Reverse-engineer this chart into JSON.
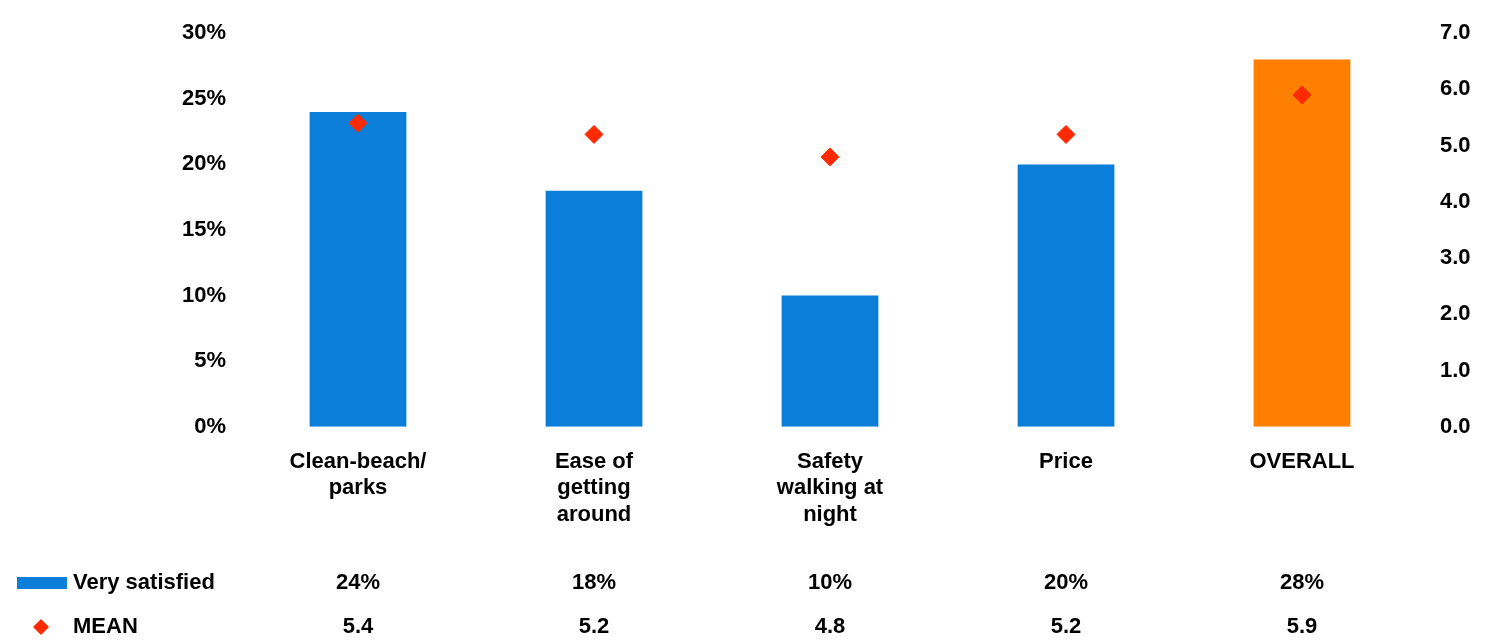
{
  "chart_data": {
    "type": "bar",
    "categories": [
      "Clean-beach/\nparks",
      "Ease of\ngetting\naround",
      "Safety\nwalking at\nnight",
      "Price",
      "OVERALL"
    ],
    "series": [
      {
        "name": "Very satisfied",
        "colors": [
          "#0a7ed8",
          "#0a7ed8",
          "#0a7ed8",
          "#0a7ed8",
          "#ff7f00"
        ],
        "values": [
          24,
          18,
          10,
          20,
          28
        ],
        "value_labels": [
          "24%",
          "18%",
          "10%",
          "20%",
          "28%"
        ]
      },
      {
        "name": "MEAN",
        "type": "scatter",
        "axis": "y2",
        "color": "#ff2a00",
        "marker": "diamond",
        "values": [
          5.4,
          5.2,
          4.8,
          5.2,
          5.9
        ],
        "value_labels": [
          "5.4",
          "5.2",
          "4.8",
          "5.2",
          "5.9"
        ]
      }
    ],
    "ylim": [
      0,
      30
    ],
    "yticks": [
      {
        "value": 0,
        "label": "0%"
      },
      {
        "value": 5,
        "label": "5%"
      },
      {
        "value": 10,
        "label": "10%"
      },
      {
        "value": 15,
        "label": "15%"
      },
      {
        "value": 20,
        "label": "20%"
      },
      {
        "value": 25,
        "label": "25%"
      },
      {
        "value": 30,
        "label": "30%"
      }
    ],
    "y2lim": [
      0,
      7
    ],
    "y2ticks": [
      {
        "value": 0,
        "label": "0.0"
      },
      {
        "value": 1,
        "label": "1.0"
      },
      {
        "value": 2,
        "label": "2.0"
      },
      {
        "value": 3,
        "label": "3.0"
      },
      {
        "value": 4,
        "label": "4.0"
      },
      {
        "value": 5,
        "label": "5.0"
      },
      {
        "value": 6,
        "label": "6.0"
      },
      {
        "value": 7,
        "label": "7.0"
      }
    ],
    "legend": "bottom",
    "grid": false
  }
}
